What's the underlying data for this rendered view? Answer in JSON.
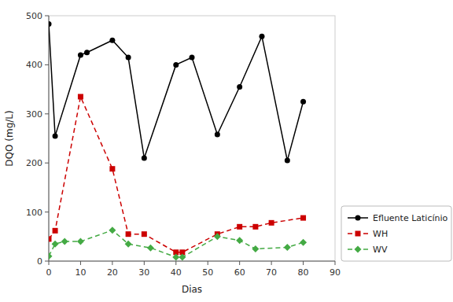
{
  "chart_data": {
    "type": "line",
    "x_label": "Dias",
    "y_label": "DQO (mg/L)",
    "xlim": [
      0,
      90
    ],
    "ylim": [
      0,
      500
    ],
    "xticks": [
      0,
      10,
      20,
      30,
      40,
      50,
      60,
      70,
      80,
      90
    ],
    "yticks": [
      0,
      100,
      200,
      300,
      400,
      500
    ],
    "grid": false,
    "legend": "lower right",
    "series": [
      {
        "name": "Efluente Laticínio",
        "color": "#000000",
        "marker": "circle",
        "line_style": "solid",
        "x": [
          0,
          2,
          10,
          12,
          20,
          25,
          30,
          40,
          45,
          53,
          60,
          67,
          75,
          80
        ],
        "values": [
          483,
          255,
          420,
          425,
          450,
          415,
          210,
          400,
          415,
          258,
          355,
          458,
          205,
          325
        ]
      },
      {
        "name": "WH",
        "color": "#cc0000",
        "marker": "square",
        "line_style": "dashed",
        "x": [
          0,
          2,
          10,
          20,
          25,
          30,
          40,
          42,
          53,
          60,
          65,
          70,
          80
        ],
        "values": [
          45,
          62,
          335,
          188,
          55,
          55,
          18,
          18,
          55,
          70,
          70,
          78,
          88
        ]
      },
      {
        "name": "WV",
        "color": "#44aa44",
        "marker": "diamond",
        "line_style": "dashed",
        "x": [
          0,
          2,
          5,
          10,
          20,
          25,
          32,
          40,
          42,
          53,
          60,
          65,
          75,
          80
        ],
        "values": [
          10,
          35,
          40,
          40,
          63,
          35,
          27,
          8,
          8,
          50,
          42,
          25,
          28,
          38
        ]
      }
    ]
  }
}
